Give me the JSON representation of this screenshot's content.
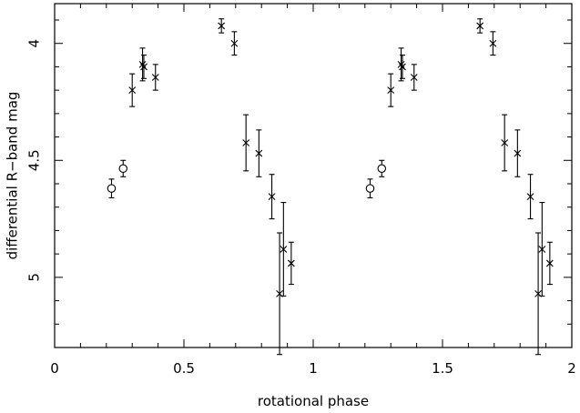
{
  "chart_data": {
    "type": "scatter",
    "title": "",
    "xlabel": "rotational phase",
    "ylabel": "differential R−band mag",
    "xlim": [
      0,
      2
    ],
    "ylim": [
      5.3,
      3.83
    ],
    "y_inverted": true,
    "x_ticks": [
      {
        "value": 0,
        "label": "0"
      },
      {
        "value": 0.5,
        "label": "0.5"
      },
      {
        "value": 1,
        "label": "1"
      },
      {
        "value": 1.5,
        "label": "1.5"
      },
      {
        "value": 2,
        "label": "2"
      }
    ],
    "y_ticks": [
      {
        "value": 4,
        "label": "4"
      },
      {
        "value": 4.5,
        "label": "4.5"
      },
      {
        "value": 5,
        "label": "5"
      }
    ],
    "grid": false,
    "series": [
      {
        "marker": "circle",
        "points": [
          {
            "x": 0.22,
            "y": 4.62,
            "err": 0.04
          },
          {
            "x": 0.265,
            "y": 4.535,
            "err": 0.035
          },
          {
            "x": 1.22,
            "y": 4.62,
            "err": 0.04
          },
          {
            "x": 1.265,
            "y": 4.535,
            "err": 0.035
          }
        ]
      },
      {
        "marker": "cross",
        "points": [
          {
            "x": 0.3,
            "y": 4.2,
            "err": 0.07
          },
          {
            "x": 0.34,
            "y": 4.09,
            "err": 0.07
          },
          {
            "x": 0.345,
            "y": 4.1,
            "err": 0.05
          },
          {
            "x": 0.39,
            "y": 4.145,
            "err": 0.055
          },
          {
            "x": 0.645,
            "y": 3.925,
            "err": 0.03
          },
          {
            "x": 0.695,
            "y": 4.0,
            "err": 0.05
          },
          {
            "x": 0.74,
            "y": 4.425,
            "err": 0.12
          },
          {
            "x": 0.79,
            "y": 4.47,
            "err": 0.1
          },
          {
            "x": 0.84,
            "y": 4.655,
            "err": 0.095
          },
          {
            "x": 0.87,
            "y": 5.07,
            "err": 0.26
          },
          {
            "x": 0.885,
            "y": 4.88,
            "err": 0.2
          },
          {
            "x": 0.915,
            "y": 4.94,
            "err": 0.09
          },
          {
            "x": 1.3,
            "y": 4.2,
            "err": 0.07
          },
          {
            "x": 1.34,
            "y": 4.09,
            "err": 0.07
          },
          {
            "x": 1.345,
            "y": 4.1,
            "err": 0.05
          },
          {
            "x": 1.39,
            "y": 4.145,
            "err": 0.055
          },
          {
            "x": 1.645,
            "y": 3.925,
            "err": 0.03
          },
          {
            "x": 1.695,
            "y": 4.0,
            "err": 0.05
          },
          {
            "x": 1.74,
            "y": 4.425,
            "err": 0.12
          },
          {
            "x": 1.79,
            "y": 4.47,
            "err": 0.1
          },
          {
            "x": 1.84,
            "y": 4.655,
            "err": 0.095
          },
          {
            "x": 1.87,
            "y": 5.07,
            "err": 0.26
          },
          {
            "x": 1.885,
            "y": 4.88,
            "err": 0.2
          },
          {
            "x": 1.915,
            "y": 4.94,
            "err": 0.09
          }
        ]
      }
    ]
  }
}
